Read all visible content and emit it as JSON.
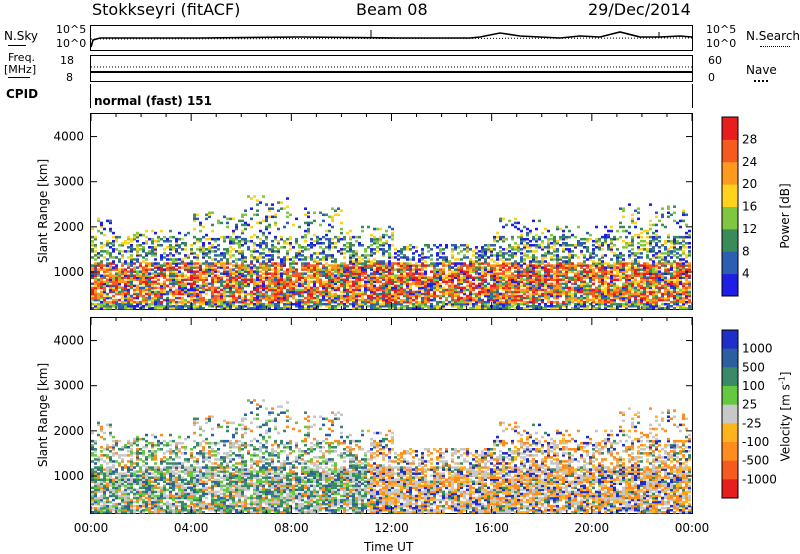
{
  "header": {
    "station": "Stokkseyri (fitACF)",
    "beam": "Beam 08",
    "date": "29/Dec/2014"
  },
  "noise_panel": {
    "left_label": "N.Sky",
    "left_top": "10^5",
    "left_bottom": "10^0",
    "right_label": "N.Search",
    "right_top": "10^5",
    "right_bottom": "10^0"
  },
  "freq_panel": {
    "left_label_1": "Freq.",
    "left_label_2": "[MHz]",
    "left_top": "18",
    "left_bottom": "8",
    "right_label": "Nave",
    "right_top": "60",
    "right_bottom": "0"
  },
  "cpid": {
    "label": "CPID",
    "value": "normal (fast) 151"
  },
  "chart_data": [
    {
      "type": "heatmap",
      "name": "power",
      "ylabel": "Slant Range [km]",
      "yticks": [
        "4000",
        "3000",
        "2000",
        "1000"
      ],
      "ylim": [
        180,
        4500
      ],
      "colorbar_label": "Power [dB]",
      "colorbar_ticks": [
        "28",
        "24",
        "20",
        "16",
        "12",
        "8",
        "4"
      ],
      "colors": [
        "#1e1ee6",
        "#2c5fb0",
        "#3a8a5a",
        "#7fc641",
        "#ffd21e",
        "#ff9a1e",
        "#f55a1e",
        "#e61e1e"
      ]
    },
    {
      "type": "heatmap",
      "name": "velocity",
      "ylabel": "Slant Range [km]",
      "yticks": [
        "4000",
        "3000",
        "2000",
        "1000"
      ],
      "ylim": [
        180,
        4500
      ],
      "colorbar_label": "Velocity [m s",
      "colorbar_label_sup": "-1",
      "colorbar_label_end": "]",
      "colorbar_ticks": [
        "1000",
        "500",
        "100",
        "25",
        "-25",
        "-100",
        "-500",
        "-1000"
      ],
      "colors": [
        "#1e2ec8",
        "#2c5fa0",
        "#3a8a6a",
        "#64c841",
        "#c8c8c8",
        "#ffb41e",
        "#ff8c1e",
        "#f55a1e",
        "#e61e1e"
      ]
    }
  ],
  "xaxis": {
    "ticks": [
      "00:00",
      "04:00",
      "08:00",
      "12:00",
      "16:00",
      "20:00",
      "00:00"
    ],
    "label": "Time UT"
  }
}
